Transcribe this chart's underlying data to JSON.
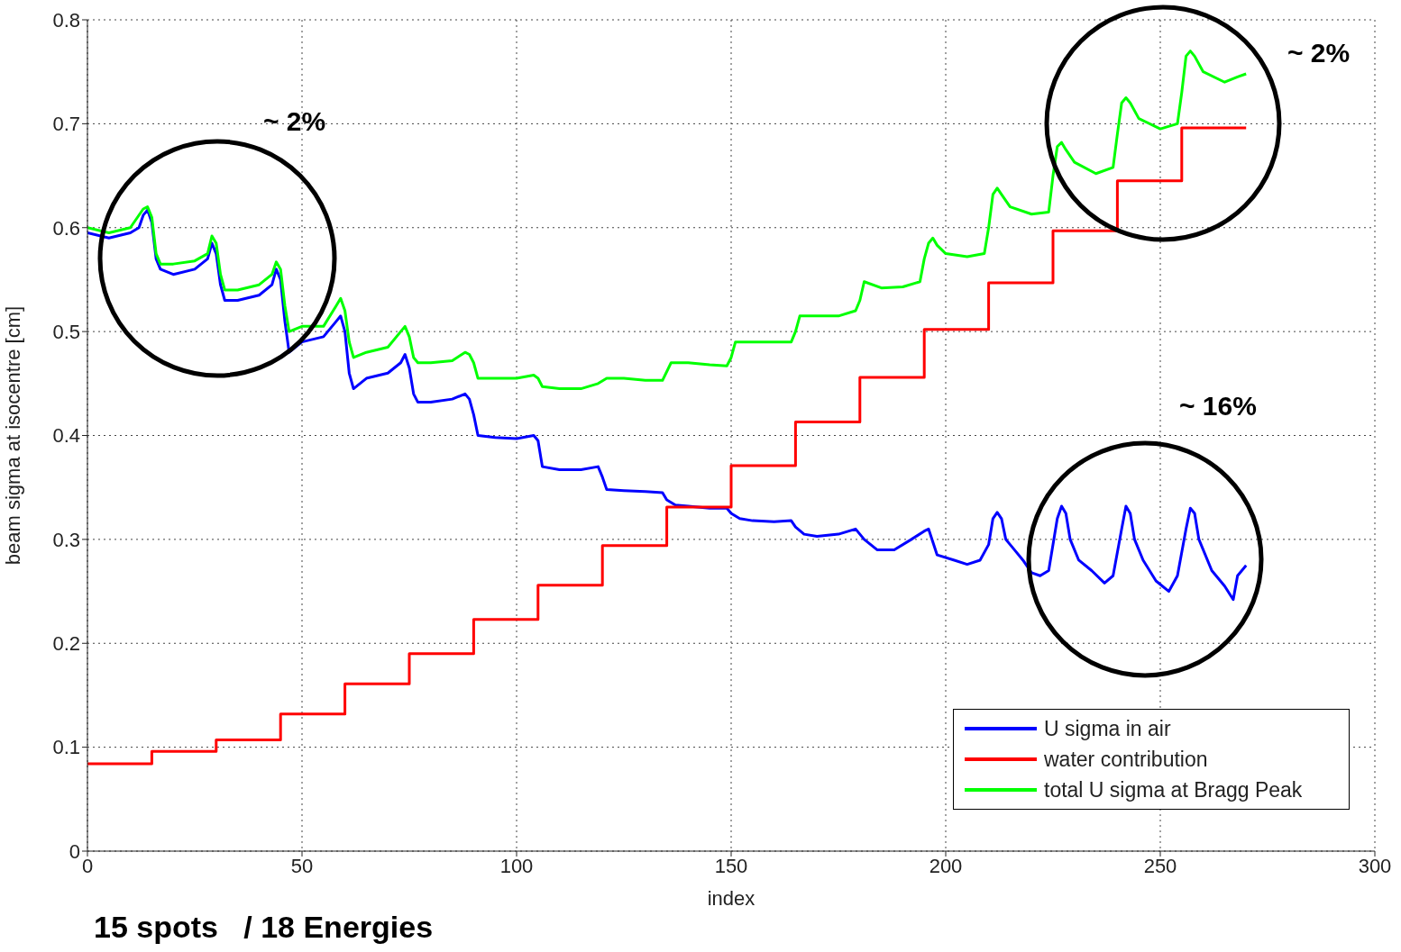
{
  "chart_data": {
    "type": "line",
    "xlabel": "index",
    "ylabel": "beam sigma at isocentre [cm]",
    "xlim": [
      0,
      300
    ],
    "xticks": [
      0,
      50,
      100,
      150,
      200,
      250,
      300
    ],
    "ylim": [
      0,
      0.8
    ],
    "yticks": [
      0,
      0.1,
      0.2,
      0.3,
      0.4,
      0.5,
      0.6,
      0.7,
      0.8
    ],
    "grid": true,
    "legend": "bottom right",
    "marker": "none",
    "line_style": "solid",
    "annotations": [
      "~ 2%",
      "~ 2%",
      "~ 16%",
      "15 spots   / 18 Energies"
    ],
    "series": [
      {
        "name": "U sigma in air",
        "color": "#0000ff",
        "x": [
          0,
          5,
          10,
          12,
          13,
          14,
          15,
          16,
          17,
          20,
          25,
          28,
          29,
          30,
          31,
          32,
          35,
          40,
          43,
          44,
          45,
          46,
          47,
          50,
          55,
          58,
          59,
          60,
          61,
          62,
          65,
          70,
          73,
          74,
          75,
          76,
          77,
          80,
          85,
          88,
          89,
          90,
          91,
          95,
          100,
          104,
          105,
          106,
          110,
          115,
          119,
          120,
          121,
          125,
          130,
          134,
          135,
          137,
          140,
          145,
          149,
          150,
          152,
          155,
          160,
          164,
          165,
          167,
          170,
          175,
          179,
          181,
          184,
          188,
          192,
          195,
          196,
          198,
          202,
          205,
          208,
          210,
          211,
          212,
          213,
          214,
          216,
          218,
          220,
          222,
          224,
          226,
          227,
          228,
          229,
          231,
          234,
          237,
          239,
          241,
          242,
          243,
          244,
          246,
          249,
          252,
          254,
          256,
          257,
          258,
          259,
          262,
          265,
          267,
          268,
          269,
          270
        ],
        "values": [
          0.595,
          0.59,
          0.595,
          0.6,
          0.612,
          0.617,
          0.605,
          0.57,
          0.56,
          0.555,
          0.56,
          0.57,
          0.585,
          0.575,
          0.545,
          0.53,
          0.53,
          0.535,
          0.545,
          0.56,
          0.55,
          0.51,
          0.48,
          0.49,
          0.495,
          0.51,
          0.515,
          0.5,
          0.46,
          0.445,
          0.455,
          0.46,
          0.47,
          0.478,
          0.465,
          0.44,
          0.432,
          0.432,
          0.435,
          0.44,
          0.435,
          0.42,
          0.4,
          0.398,
          0.397,
          0.4,
          0.395,
          0.37,
          0.367,
          0.367,
          0.37,
          0.36,
          0.348,
          0.347,
          0.346,
          0.345,
          0.338,
          0.333,
          0.332,
          0.33,
          0.33,
          0.325,
          0.32,
          0.318,
          0.317,
          0.318,
          0.312,
          0.305,
          0.303,
          0.305,
          0.31,
          0.3,
          0.29,
          0.29,
          0.3,
          0.308,
          0.31,
          0.285,
          0.28,
          0.276,
          0.28,
          0.295,
          0.32,
          0.326,
          0.32,
          0.3,
          0.29,
          0.28,
          0.268,
          0.265,
          0.27,
          0.32,
          0.332,
          0.325,
          0.3,
          0.28,
          0.27,
          0.258,
          0.265,
          0.31,
          0.332,
          0.325,
          0.3,
          0.28,
          0.26,
          0.25,
          0.265,
          0.31,
          0.33,
          0.325,
          0.3,
          0.27,
          0.255,
          0.242,
          0.265,
          0.27,
          0.275
        ]
      },
      {
        "name": "water contribution",
        "color": "#ff0000",
        "type": "step",
        "x": [
          0,
          15,
          30,
          45,
          60,
          75,
          90,
          105,
          120,
          135,
          150,
          165,
          180,
          195,
          210,
          225,
          240,
          255,
          270
        ],
        "values": [
          0.084,
          0.096,
          0.107,
          0.132,
          0.161,
          0.19,
          0.223,
          0.256,
          0.294,
          0.331,
          0.371,
          0.413,
          0.456,
          0.502,
          0.547,
          0.597,
          0.645,
          0.696,
          0.696
        ]
      },
      {
        "name": "total U sigma at Bragg Peak",
        "color": "#00ff00",
        "x": [
          0,
          5,
          10,
          13,
          14,
          15,
          16,
          17,
          20,
          25,
          28,
          29,
          30,
          31,
          32,
          35,
          40,
          43,
          44,
          45,
          46,
          47,
          50,
          55,
          58,
          59,
          60,
          61,
          62,
          65,
          70,
          73,
          74,
          75,
          76,
          77,
          80,
          85,
          88,
          89,
          90,
          91,
          95,
          100,
          104,
          105,
          106,
          110,
          115,
          119,
          121,
          125,
          130,
          134,
          136,
          140,
          145,
          149,
          150,
          151,
          155,
          160,
          164,
          165,
          166,
          170,
          175,
          179,
          180,
          181,
          185,
          190,
          194,
          195,
          196,
          197,
          198,
          200,
          205,
          209,
          210,
          211,
          212,
          213,
          215,
          220,
          224,
          225,
          226,
          227,
          228,
          230,
          235,
          239,
          240,
          241,
          242,
          243,
          245,
          250,
          254,
          255,
          256,
          257,
          258,
          260,
          265,
          268,
          270
        ],
        "values": [
          0.6,
          0.595,
          0.6,
          0.618,
          0.62,
          0.61,
          0.575,
          0.565,
          0.565,
          0.568,
          0.575,
          0.592,
          0.585,
          0.555,
          0.54,
          0.54,
          0.545,
          0.555,
          0.567,
          0.56,
          0.525,
          0.5,
          0.505,
          0.505,
          0.525,
          0.532,
          0.52,
          0.49,
          0.475,
          0.48,
          0.485,
          0.5,
          0.505,
          0.495,
          0.475,
          0.47,
          0.47,
          0.472,
          0.48,
          0.478,
          0.47,
          0.455,
          0.455,
          0.455,
          0.458,
          0.455,
          0.447,
          0.445,
          0.445,
          0.45,
          0.455,
          0.455,
          0.453,
          0.453,
          0.47,
          0.47,
          0.468,
          0.467,
          0.475,
          0.49,
          0.49,
          0.49,
          0.49,
          0.5,
          0.515,
          0.515,
          0.515,
          0.52,
          0.53,
          0.548,
          0.542,
          0.543,
          0.548,
          0.57,
          0.585,
          0.59,
          0.583,
          0.575,
          0.572,
          0.575,
          0.6,
          0.632,
          0.638,
          0.632,
          0.62,
          0.613,
          0.615,
          0.65,
          0.678,
          0.682,
          0.675,
          0.663,
          0.652,
          0.658,
          0.69,
          0.72,
          0.725,
          0.72,
          0.705,
          0.695,
          0.7,
          0.73,
          0.765,
          0.77,
          0.765,
          0.75,
          0.74,
          0.745,
          0.748
        ]
      }
    ]
  }
}
